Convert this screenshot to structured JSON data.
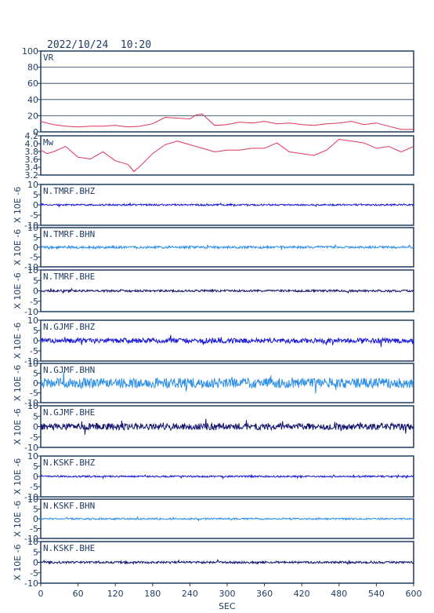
{
  "header": {
    "datetime": "2022/10/24  10:20"
  },
  "colors": {
    "frame": "#1e3a5f",
    "vr": "#e0325a",
    "mw": "#e0325a",
    "bhz": "#1a1ad6",
    "bhn": "#2e8fe6",
    "bhe": "#14146e"
  },
  "chart_data": [
    {
      "type": "line",
      "label": "VR",
      "ylim": [
        0,
        100
      ],
      "yticks": [
        "100",
        "80",
        "60",
        "40",
        "20",
        "0"
      ],
      "grid": true,
      "x": [
        0,
        10,
        20,
        40,
        60,
        80,
        100,
        120,
        140,
        160,
        180,
        200,
        220,
        240,
        250,
        260,
        270,
        280,
        300,
        320,
        340,
        360,
        380,
        400,
        420,
        440,
        460,
        480,
        500,
        520,
        540,
        560,
        580,
        600
      ],
      "y": [
        13,
        11,
        9,
        7,
        6,
        7,
        7,
        8,
        6,
        7,
        10,
        18,
        17,
        16,
        21,
        22,
        15,
        8,
        9,
        12,
        11,
        13,
        10,
        11,
        9,
        8,
        10,
        11,
        13,
        9,
        11,
        7,
        3,
        3
      ]
    },
    {
      "type": "line",
      "label": "Mw",
      "ylim": [
        3.1,
        4.2
      ],
      "yticks": [
        "4.2",
        "4.0",
        "3.8",
        "3.6",
        "3.4",
        "3.2"
      ],
      "x": [
        0,
        10,
        20,
        40,
        60,
        80,
        100,
        120,
        140,
        150,
        160,
        180,
        200,
        220,
        240,
        260,
        280,
        300,
        320,
        340,
        360,
        380,
        400,
        420,
        440,
        460,
        480,
        500,
        520,
        540,
        560,
        580,
        600
      ],
      "y": [
        3.8,
        3.7,
        3.75,
        3.9,
        3.6,
        3.55,
        3.75,
        3.5,
        3.4,
        3.2,
        3.35,
        3.7,
        3.95,
        4.05,
        3.95,
        3.85,
        3.75,
        3.8,
        3.8,
        3.85,
        3.85,
        4.0,
        3.75,
        3.7,
        3.65,
        3.8,
        4.1,
        4.05,
        4.0,
        3.85,
        3.9,
        3.75,
        3.9
      ]
    },
    {
      "type": "line",
      "label": "N.TMRF.BHZ",
      "color_key": "bhz",
      "ylim": [
        -10,
        10
      ],
      "yticks": [
        "10",
        "5",
        "0",
        "-5",
        "-10"
      ],
      "ylabel": "X 10E -6",
      "amplitude": 0.4
    },
    {
      "type": "line",
      "label": "N.TMRF.BHN",
      "color_key": "bhn",
      "ylim": [
        -10,
        10
      ],
      "yticks": [
        "10",
        "5",
        "0",
        "-5",
        "-10"
      ],
      "ylabel": "X 10E -6",
      "amplitude": 0.6
    },
    {
      "type": "line",
      "label": "N.TMRF.BHE",
      "color_key": "bhe",
      "ylim": [
        -10,
        10
      ],
      "yticks": [
        "10",
        "5",
        "0",
        "-5",
        "-10"
      ],
      "ylabel": "X 10E -6",
      "amplitude": 0.5
    },
    {
      "type": "line",
      "label": "N.GJMF.BHZ",
      "color_key": "bhz",
      "ylim": [
        -10,
        10
      ],
      "yticks": [
        "10",
        "5",
        "0",
        "-5",
        "-10"
      ],
      "ylabel": "X 10E -6",
      "amplitude": 1.2
    },
    {
      "type": "line",
      "label": "N.GJMF.BHN",
      "color_key": "bhn",
      "ylim": [
        -10,
        10
      ],
      "yticks": [
        "10",
        "5",
        "0",
        "-5",
        "-10"
      ],
      "ylabel": "X 10E -6",
      "amplitude": 2.5
    },
    {
      "type": "line",
      "label": "N.GJMF.BHE",
      "color_key": "bhe",
      "ylim": [
        -10,
        10
      ],
      "yticks": [
        "10",
        "5",
        "0",
        "-5",
        "-10"
      ],
      "ylabel": "X 10E -6",
      "amplitude": 1.6
    },
    {
      "type": "line",
      "label": "N.KSKF.BHZ",
      "color_key": "bhz",
      "ylim": [
        -10,
        10
      ],
      "yticks": [
        "10",
        "5",
        "0",
        "-5",
        "-10"
      ],
      "ylabel": "X 10E -6",
      "amplitude": 0.4
    },
    {
      "type": "line",
      "label": "N.KSKF.BHN",
      "color_key": "bhn",
      "ylim": [
        -10,
        10
      ],
      "yticks": [
        "10",
        "5",
        "0",
        "-5",
        "-10"
      ],
      "ylabel": "X 10E -6",
      "amplitude": 0.4
    },
    {
      "type": "line",
      "label": "N.KSKF.BHE",
      "color_key": "bhe",
      "ylim": [
        -10,
        10
      ],
      "yticks": [
        "10",
        "5",
        "0",
        "-5",
        "-10"
      ],
      "ylabel": "X 10E -6",
      "amplitude": 0.5
    }
  ],
  "xaxis": {
    "xlim": [
      0,
      600
    ],
    "ticks": [
      "0",
      "60",
      "120",
      "180",
      "240",
      "300",
      "360",
      "420",
      "480",
      "540",
      "600"
    ],
    "label": "SEC"
  }
}
